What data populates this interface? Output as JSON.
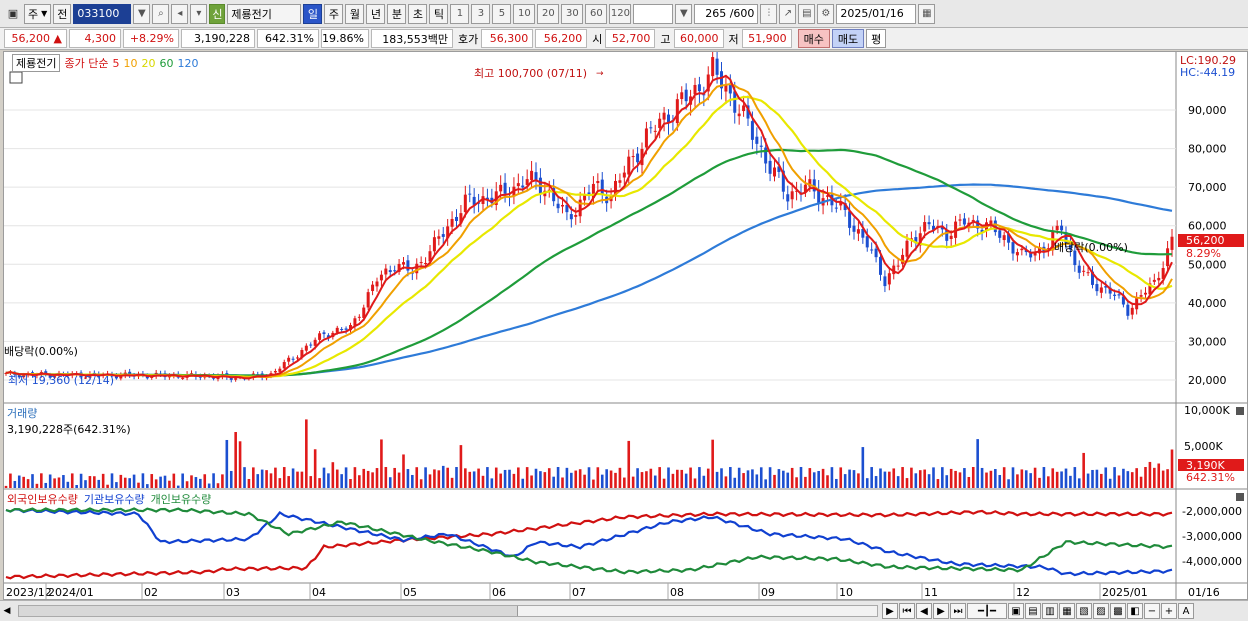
{
  "toolbar": {
    "market": "주",
    "prev_label": "전",
    "code": "033100",
    "sin_label": "신",
    "stock_name": "제룡전기",
    "periods": [
      "일",
      "주",
      "월",
      "년",
      "분",
      "초",
      "틱"
    ],
    "active_period": "일",
    "counts": [
      "1",
      "3",
      "5",
      "10",
      "20",
      "30",
      "60",
      "120"
    ],
    "counter": "265 /600",
    "date": "2025/01/16"
  },
  "quote": {
    "price": "56,200",
    "arrow": "▲",
    "change": "4,300",
    "change_pct": "+8.29%",
    "volume": "3,190,228",
    "volume_pct": "642.31%",
    "turnover": "19.86%",
    "amount": "183,553백만",
    "bid_label": "호가",
    "ask_price": "56,300",
    "bid_price": "56,200",
    "open_label": "시",
    "open": "52,700",
    "high_label": "고",
    "high": "60,000",
    "low_label": "저",
    "low": "51,900",
    "buy_label": "매수",
    "sell_label": "매도",
    "flat_label": "평"
  },
  "legend": {
    "name": "제룡전기",
    "ma_label": "종가 단순",
    "ma": [
      {
        "period": "5",
        "color": "#e01a1a"
      },
      {
        "period": "10",
        "color": "#f0a000"
      },
      {
        "period": "20",
        "color": "#e8e800"
      },
      {
        "period": "60",
        "color": "#1f9c3a"
      },
      {
        "period": "120",
        "color": "#2e7bd8"
      }
    ]
  },
  "annotations": {
    "high": "최고 100,700 (07/11)",
    "low": "최저 19,360 (12/14)",
    "div1": "배당락(0.00%)",
    "div2": "배당락(0.00%)",
    "lc": "LC:190.29",
    "hc": "HC:-44.19",
    "price_tag": "56,200",
    "pct_tag": "8.29%",
    "vol_tag": "3,190K",
    "vol_pct_tag": "642.31%"
  },
  "volume_panel": {
    "title": "거래량",
    "value": "3,190,228주(642.31%)",
    "ticks": [
      "10,000K",
      "5,000K"
    ]
  },
  "holdings_panel": {
    "labels": [
      {
        "text": "외국인보유수량",
        "color": "#d01010"
      },
      {
        "text": "기관보유수량",
        "color": "#1040d0"
      },
      {
        "text": "개인보유수량",
        "color": "#1f8a3a"
      }
    ],
    "ticks": [
      "-2,000,000",
      "-3,000,000",
      "-4,000,000"
    ]
  },
  "price_ticks": [
    "90,000",
    "80,000",
    "70,000",
    "60,000",
    "50,000",
    "40,000",
    "30,000",
    "20,000"
  ],
  "x_labels": [
    "2023/12",
    "2024/01",
    "02",
    "03",
    "04",
    "05",
    "06",
    "07",
    "08",
    "09",
    "10",
    "11",
    "12",
    "2025/01",
    "01/16"
  ],
  "colors": {
    "ma5": "#e01a1a",
    "ma10": "#f0a000",
    "ma20": "#e8e800",
    "ma60": "#1f9c3a",
    "ma120": "#2e7bd8",
    "up": "#e01a1a",
    "down": "#1c4fd0"
  }
}
